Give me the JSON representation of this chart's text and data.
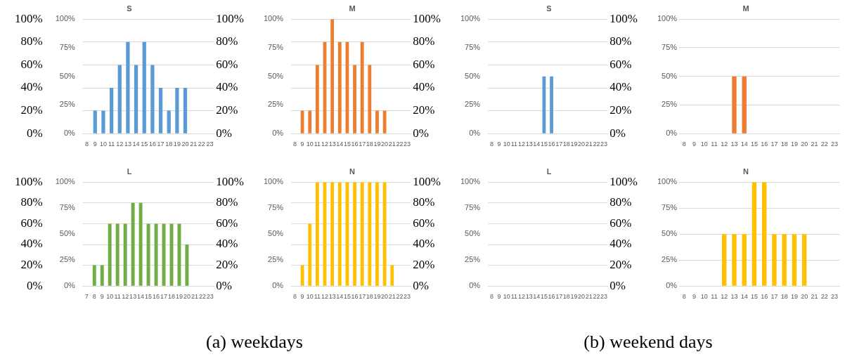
{
  "chart_data": [
    {
      "type": "bar",
      "title": "S",
      "categories": [
        "8",
        "9",
        "10",
        "11",
        "12",
        "13",
        "14",
        "15",
        "16",
        "17",
        "18",
        "19",
        "20",
        "21",
        "22",
        "23"
      ],
      "values": [
        0,
        20,
        20,
        40,
        60,
        80,
        60,
        80,
        60,
        40,
        20,
        40,
        40,
        0,
        0,
        0
      ],
      "color": "#5b9bd5",
      "ylim": [
        0,
        100
      ],
      "yticks": [
        {
          "value": 0,
          "label": "0%"
        },
        {
          "value": 20,
          "label": "20%"
        },
        {
          "value": 40,
          "label": "40%"
        },
        {
          "value": 60,
          "label": "60%"
        },
        {
          "value": 80,
          "label": "80%"
        },
        {
          "value": 100,
          "label": "100%"
        }
      ],
      "y2lim": [
        0,
        100
      ],
      "y2ticks": [
        {
          "value": 0,
          "label": "0%"
        },
        {
          "value": 25,
          "label": "25%"
        },
        {
          "value": 50,
          "label": "50%"
        },
        {
          "value": 75,
          "label": "75%"
        },
        {
          "value": 100,
          "label": "100%"
        }
      ],
      "y3lim": [
        0,
        100
      ],
      "y3ticks": [
        {
          "value": 0,
          "label": "0%"
        },
        {
          "value": 20,
          "label": "20%"
        },
        {
          "value": 40,
          "label": "40%"
        },
        {
          "value": 60,
          "label": "60%"
        },
        {
          "value": 80,
          "label": "80%"
        },
        {
          "value": 100,
          "label": "100%"
        }
      ],
      "grid": "y",
      "legend": false
    },
    {
      "type": "bar",
      "title": "M",
      "categories": [
        "8",
        "9",
        "10",
        "11",
        "12",
        "13",
        "14",
        "15",
        "16",
        "17",
        "18",
        "19",
        "20",
        "21",
        "22",
        "23"
      ],
      "values": [
        0,
        20,
        20,
        60,
        80,
        100,
        80,
        80,
        60,
        80,
        60,
        20,
        20,
        0,
        0,
        0
      ],
      "color": "#ed7d31",
      "ylim": [
        0,
        100
      ],
      "yticks": [
        {
          "value": 0,
          "label": "0%"
        },
        {
          "value": 20,
          "label": "20%"
        },
        {
          "value": 40,
          "label": "40%"
        },
        {
          "value": 60,
          "label": "60%"
        },
        {
          "value": 80,
          "label": "80%"
        },
        {
          "value": 100,
          "label": "100%"
        }
      ],
      "y2lim": [
        0,
        100
      ],
      "y2ticks": [
        {
          "value": 0,
          "label": "0%"
        },
        {
          "value": 25,
          "label": "25%"
        },
        {
          "value": 50,
          "label": "50%"
        },
        {
          "value": 75,
          "label": "75%"
        },
        {
          "value": 100,
          "label": "100%"
        }
      ],
      "grid": "y",
      "legend": false
    },
    {
      "type": "bar",
      "title": "S",
      "categories": [
        "8",
        "9",
        "10",
        "11",
        "12",
        "13",
        "14",
        "15",
        "16",
        "17",
        "18",
        "19",
        "20",
        "21",
        "22",
        "23"
      ],
      "values": [
        0,
        0,
        0,
        0,
        0,
        0,
        0,
        50,
        50,
        0,
        0,
        0,
        0,
        0,
        0,
        0
      ],
      "color": "#5b9bd5",
      "ylim": [
        0,
        100
      ],
      "yticks": [
        {
          "value": 0,
          "label": "0%"
        },
        {
          "value": 20,
          "label": "20%"
        },
        {
          "value": 40,
          "label": "40%"
        },
        {
          "value": 60,
          "label": "60%"
        },
        {
          "value": 80,
          "label": "80%"
        },
        {
          "value": 100,
          "label": "100%"
        }
      ],
      "y2lim": [
        0,
        100
      ],
      "y2ticks": [
        {
          "value": 0,
          "label": "0%"
        },
        {
          "value": 25,
          "label": "25%"
        },
        {
          "value": 50,
          "label": "50%"
        },
        {
          "value": 75,
          "label": "75%"
        },
        {
          "value": 100,
          "label": "100%"
        }
      ],
      "grid": "y",
      "legend": false
    },
    {
      "type": "bar",
      "title": "M",
      "categories": [
        "8",
        "9",
        "10",
        "11",
        "12",
        "13",
        "14",
        "15",
        "16",
        "17",
        "18",
        "19",
        "20",
        "21",
        "22",
        "23"
      ],
      "values": [
        0,
        0,
        0,
        0,
        0,
        50,
        50,
        0,
        0,
        0,
        0,
        0,
        0,
        0,
        0,
        0
      ],
      "color": "#ed7d31",
      "ylim": [
        0,
        100
      ],
      "yticks": [
        {
          "value": 0,
          "label": "0%"
        },
        {
          "value": 25,
          "label": "25%"
        },
        {
          "value": 50,
          "label": "50%"
        },
        {
          "value": 75,
          "label": "75%"
        },
        {
          "value": 100,
          "label": "100%"
        }
      ],
      "grid": "y",
      "legend": false
    },
    {
      "type": "bar",
      "title": "L",
      "categories": [
        "7",
        "8",
        "9",
        "10",
        "11",
        "12",
        "13",
        "14",
        "15",
        "16",
        "17",
        "18",
        "19",
        "20",
        "21",
        "22",
        "23"
      ],
      "values": [
        0,
        20,
        20,
        60,
        60,
        60,
        80,
        80,
        60,
        60,
        60,
        60,
        60,
        40,
        0,
        0,
        0
      ],
      "color": "#70ad47",
      "ylim": [
        0,
        100
      ],
      "yticks": [
        {
          "value": 0,
          "label": "0%"
        },
        {
          "value": 20,
          "label": "20%"
        },
        {
          "value": 40,
          "label": "40%"
        },
        {
          "value": 60,
          "label": "60%"
        },
        {
          "value": 80,
          "label": "80%"
        },
        {
          "value": 100,
          "label": "100%"
        }
      ],
      "y2lim": [
        0,
        100
      ],
      "y2ticks": [
        {
          "value": 0,
          "label": "0%"
        },
        {
          "value": 25,
          "label": "25%"
        },
        {
          "value": 50,
          "label": "50%"
        },
        {
          "value": 75,
          "label": "75%"
        },
        {
          "value": 100,
          "label": "100%"
        }
      ],
      "y3lim": [
        0,
        100
      ],
      "y3ticks": [
        {
          "value": 0,
          "label": "0%"
        },
        {
          "value": 20,
          "label": "20%"
        },
        {
          "value": 40,
          "label": "40%"
        },
        {
          "value": 60,
          "label": "60%"
        },
        {
          "value": 80,
          "label": "80%"
        },
        {
          "value": 100,
          "label": "100%"
        }
      ],
      "grid": "y",
      "legend": false,
      "annotations": [
        "(a) weekdays"
      ]
    },
    {
      "type": "bar",
      "title": "N",
      "categories": [
        "8",
        "9",
        "10",
        "11",
        "12",
        "13",
        "14",
        "15",
        "16",
        "17",
        "18",
        "19",
        "20",
        "21",
        "22",
        "23"
      ],
      "values": [
        0,
        20,
        60,
        100,
        100,
        100,
        100,
        100,
        100,
        100,
        100,
        100,
        100,
        20,
        0,
        0
      ],
      "color": "#ffc000",
      "ylim": [
        0,
        100
      ],
      "yticks": [
        {
          "value": 0,
          "label": "0%"
        },
        {
          "value": 20,
          "label": "20%"
        },
        {
          "value": 40,
          "label": "40%"
        },
        {
          "value": 60,
          "label": "60%"
        },
        {
          "value": 80,
          "label": "80%"
        },
        {
          "value": 100,
          "label": "100%"
        }
      ],
      "y2lim": [
        0,
        100
      ],
      "y2ticks": [
        {
          "value": 0,
          "label": "0%"
        },
        {
          "value": 25,
          "label": "25%"
        },
        {
          "value": 50,
          "label": "50%"
        },
        {
          "value": 75,
          "label": "75%"
        },
        {
          "value": 100,
          "label": "100%"
        }
      ],
      "grid": "y",
      "legend": false
    },
    {
      "type": "bar",
      "title": "L",
      "categories": [
        "8",
        "9",
        "10",
        "11",
        "12",
        "13",
        "14",
        "15",
        "16",
        "17",
        "18",
        "19",
        "20",
        "21",
        "22",
        "23"
      ],
      "values": [
        0,
        0,
        0,
        0,
        0,
        0,
        0,
        0,
        0,
        0,
        0,
        0,
        0,
        0,
        0,
        0
      ],
      "color": "#5b9bd5",
      "ylim": [
        0,
        100
      ],
      "yticks": [
        {
          "value": 0,
          "label": "0%"
        },
        {
          "value": 20,
          "label": "20%"
        },
        {
          "value": 40,
          "label": "40%"
        },
        {
          "value": 60,
          "label": "60%"
        },
        {
          "value": 80,
          "label": "80%"
        },
        {
          "value": 100,
          "label": "100%"
        }
      ],
      "y2lim": [
        0,
        100
      ],
      "y2ticks": [
        {
          "value": 0,
          "label": "0%"
        },
        {
          "value": 25,
          "label": "25%"
        },
        {
          "value": 50,
          "label": "50%"
        },
        {
          "value": 75,
          "label": "75%"
        },
        {
          "value": 100,
          "label": "100%"
        }
      ],
      "grid": "y",
      "legend": false,
      "annotations": [
        "(b) weekend days"
      ]
    },
    {
      "type": "bar",
      "title": "N",
      "categories": [
        "8",
        "9",
        "10",
        "11",
        "12",
        "13",
        "14",
        "15",
        "16",
        "17",
        "18",
        "19",
        "20",
        "21",
        "22",
        "23"
      ],
      "values": [
        0,
        0,
        0,
        0,
        50,
        50,
        50,
        100,
        100,
        50,
        50,
        50,
        50,
        0,
        0,
        0
      ],
      "color": "#ffc000",
      "ylim": [
        0,
        100
      ],
      "yticks": [
        {
          "value": 0,
          "label": "0%"
        },
        {
          "value": 25,
          "label": "25%"
        },
        {
          "value": 50,
          "label": "50%"
        },
        {
          "value": 75,
          "label": "75%"
        },
        {
          "value": 100,
          "label": "100%"
        }
      ],
      "grid": "y",
      "legend": false
    }
  ]
}
